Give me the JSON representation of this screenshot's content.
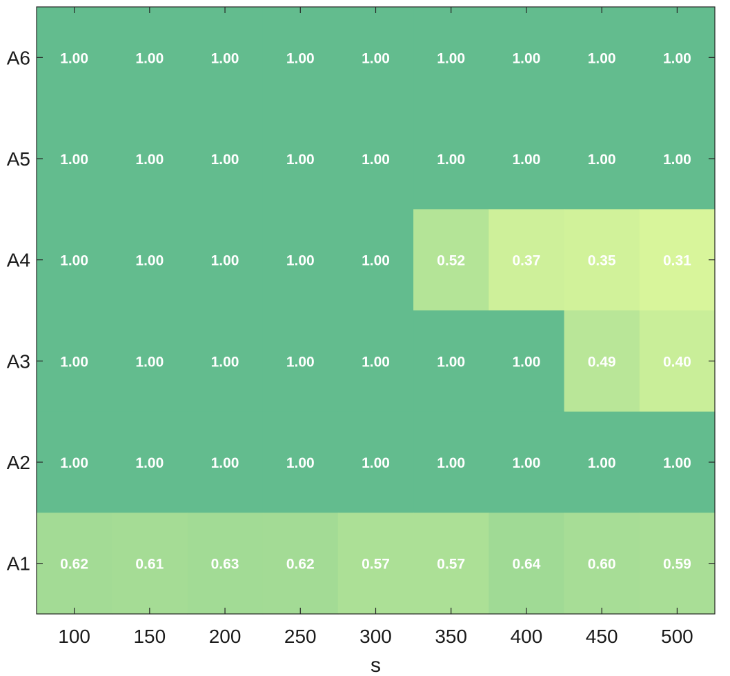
{
  "chart_data": {
    "type": "heatmap",
    "title": "",
    "xlabel": "s",
    "ylabel": "",
    "x_categories": [
      "100",
      "150",
      "200",
      "250",
      "300",
      "350",
      "400",
      "450",
      "500"
    ],
    "y_categories": [
      "A6",
      "A5",
      "A4",
      "A3",
      "A2",
      "A1"
    ],
    "values": [
      [
        1.0,
        1.0,
        1.0,
        1.0,
        1.0,
        1.0,
        1.0,
        1.0,
        1.0
      ],
      [
        1.0,
        1.0,
        1.0,
        1.0,
        1.0,
        1.0,
        1.0,
        1.0,
        1.0
      ],
      [
        1.0,
        1.0,
        1.0,
        1.0,
        1.0,
        0.52,
        0.37,
        0.35,
        0.31
      ],
      [
        1.0,
        1.0,
        1.0,
        1.0,
        1.0,
        1.0,
        1.0,
        0.49,
        0.4
      ],
      [
        1.0,
        1.0,
        1.0,
        1.0,
        1.0,
        1.0,
        1.0,
        1.0,
        1.0
      ],
      [
        0.62,
        0.61,
        0.63,
        0.62,
        0.57,
        0.57,
        0.64,
        0.6,
        0.59
      ]
    ],
    "colorscale": {
      "low_value": 0.31,
      "low_color": "#d8f59b",
      "high_value": 1.0,
      "high_color": "#63bc8e"
    },
    "grid": false,
    "legend": "none"
  }
}
